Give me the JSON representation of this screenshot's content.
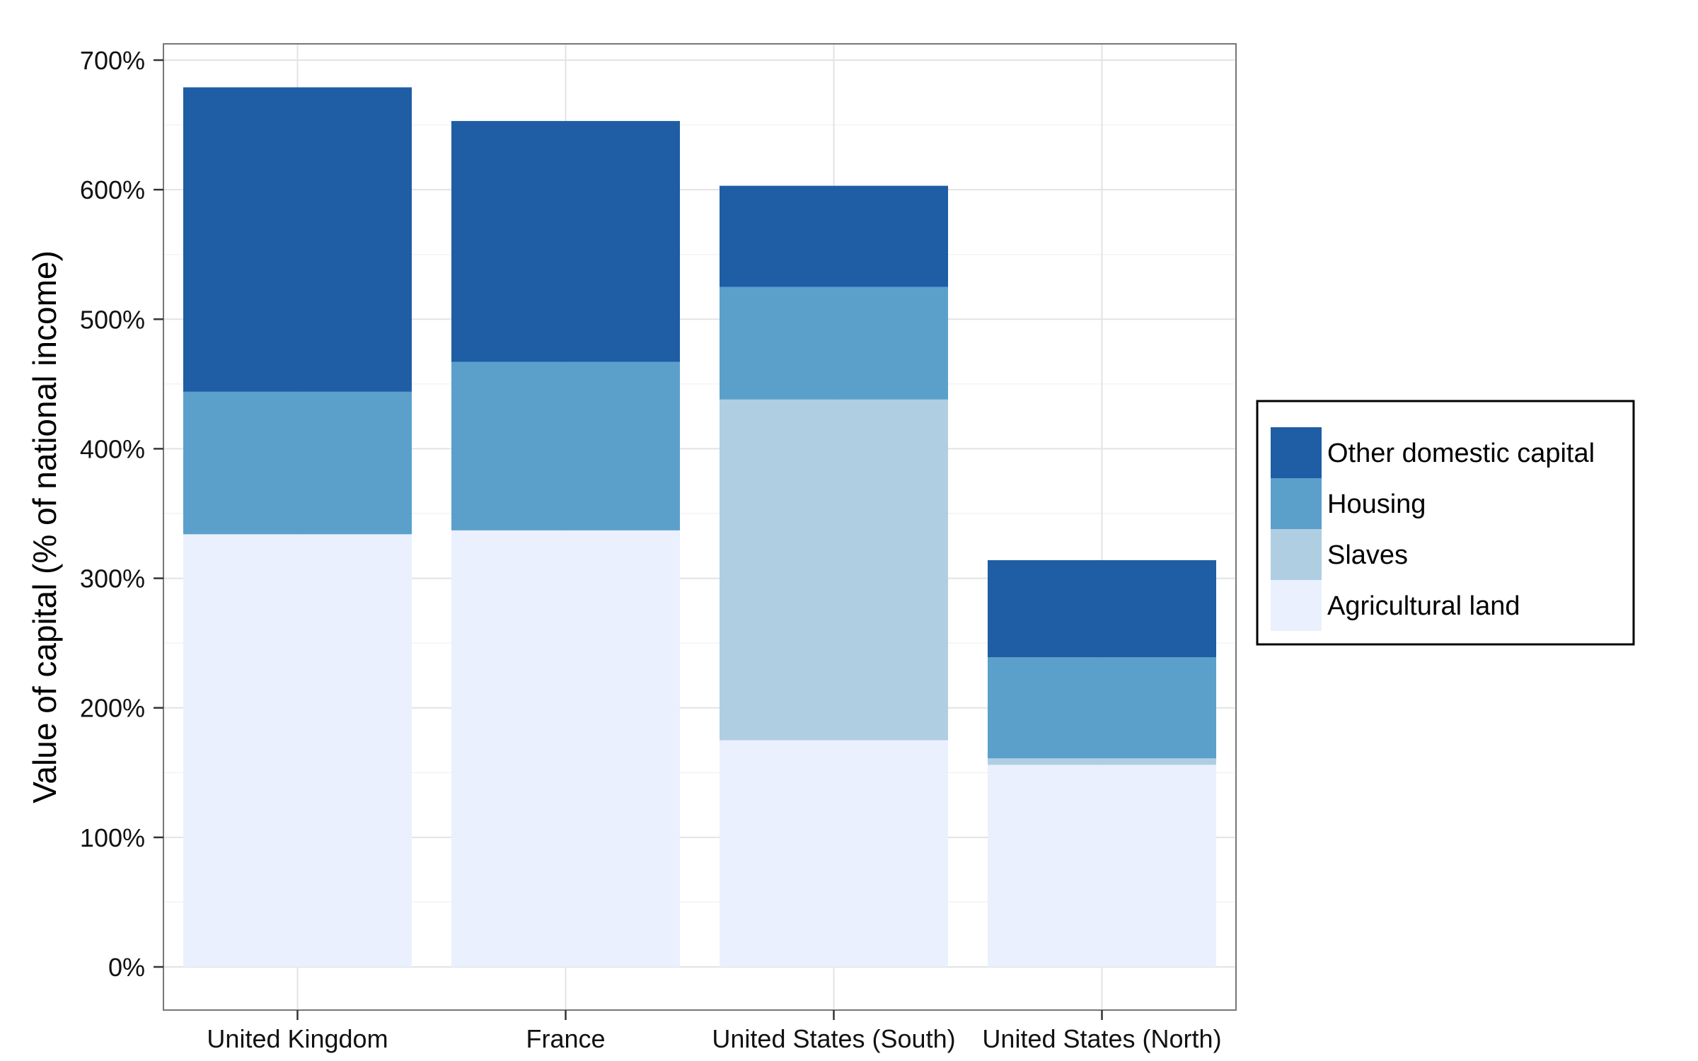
{
  "chart_data": {
    "type": "bar",
    "stacked": true,
    "title": "",
    "xlabel": "",
    "ylabel": "Value of capital (% of national income)",
    "ylim": [
      0,
      720
    ],
    "y_ticks": [
      0,
      100,
      200,
      300,
      400,
      500,
      600,
      700
    ],
    "y_tick_labels": [
      "0%",
      "100%",
      "200%",
      "300%",
      "400%",
      "500%",
      "600%",
      "700%"
    ],
    "grid": true,
    "legend_position": "right",
    "categories": [
      "United Kingdom",
      "France",
      "United States (South)",
      "United States (North)"
    ],
    "series": [
      {
        "name": "Agricultural land",
        "values": [
          334,
          337,
          175,
          156
        ],
        "color": "#EAF0FD"
      },
      {
        "name": "Slaves",
        "values": [
          0,
          0,
          263,
          5
        ],
        "color": "#B0CEE2"
      },
      {
        "name": "Housing",
        "values": [
          110,
          130,
          87,
          78
        ],
        "color": "#5BA0CB"
      },
      {
        "name": "Other domestic capital",
        "values": [
          235,
          186,
          78,
          75
        ],
        "color": "#1F5DA5"
      }
    ],
    "legend_order": [
      "Other domestic capital",
      "Housing",
      "Slaves",
      "Agricultural land"
    ]
  }
}
